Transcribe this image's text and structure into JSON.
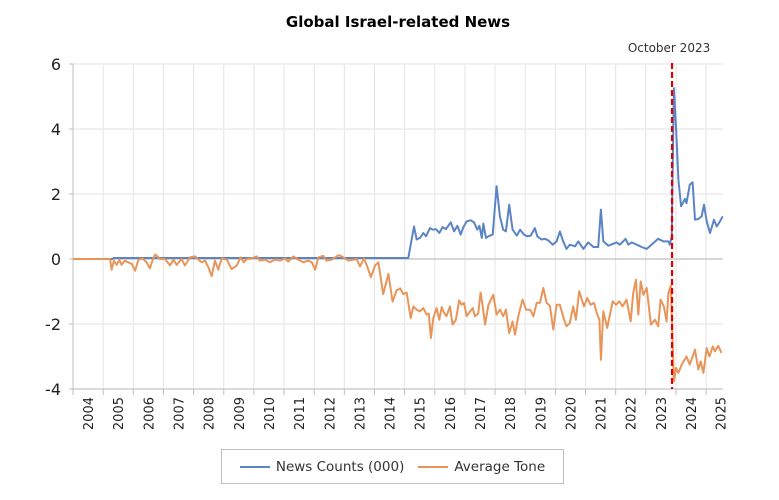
{
  "chart_data": {
    "type": "line",
    "title": "Global Israel-related News",
    "xlabel": "",
    "ylabel": "",
    "xlim": [
      2004,
      2025.55
    ],
    "ylim": [
      -4,
      6
    ],
    "yticks": [
      6,
      4,
      2,
      0,
      -2,
      -4
    ],
    "xtick_labels": [
      "2004",
      "2005",
      "2006",
      "2007",
      "2008",
      "2009",
      "2010",
      "2011",
      "2012",
      "2013",
      "2014",
      "2015",
      "2016",
      "2017",
      "2018",
      "2019",
      "2020",
      "2021",
      "2022",
      "2023",
      "2024",
      "2025"
    ],
    "grid": true,
    "legend": "bottom",
    "annotation": {
      "label": "October 2023",
      "x": 2023.87,
      "color": "#e00000",
      "style": "dashed"
    },
    "series": [
      {
        "name": "News Counts (000)",
        "color": "#5b84c4",
        "points": [
          [
            2004,
            0
          ],
          [
            2005.3,
            0
          ],
          [
            2005.35,
            0.03
          ],
          [
            2015.12,
            0.03
          ],
          [
            2015.31,
            1.0
          ],
          [
            2015.4,
            0.6
          ],
          [
            2015.51,
            0.65
          ],
          [
            2015.62,
            0.8
          ],
          [
            2015.71,
            0.7
          ],
          [
            2015.84,
            0.95
          ],
          [
            2015.93,
            0.9
          ],
          [
            2016.04,
            0.92
          ],
          [
            2016.15,
            0.8
          ],
          [
            2016.26,
            0.98
          ],
          [
            2016.37,
            0.92
          ],
          [
            2016.53,
            1.13
          ],
          [
            2016.64,
            0.85
          ],
          [
            2016.75,
            1.02
          ],
          [
            2016.86,
            0.75
          ],
          [
            2016.95,
            0.98
          ],
          [
            2017.06,
            1.16
          ],
          [
            2017.19,
            1.19
          ],
          [
            2017.3,
            1.13
          ],
          [
            2017.41,
            0.9
          ],
          [
            2017.48,
            1.02
          ],
          [
            2017.56,
            0.65
          ],
          [
            2017.61,
            1.09
          ],
          [
            2017.7,
            0.65
          ],
          [
            2017.78,
            0.7
          ],
          [
            2017.92,
            0.75
          ],
          [
            2018.05,
            2.24
          ],
          [
            2018.16,
            1.31
          ],
          [
            2018.27,
            0.9
          ],
          [
            2018.36,
            0.85
          ],
          [
            2018.47,
            1.67
          ],
          [
            2018.58,
            0.9
          ],
          [
            2018.72,
            0.72
          ],
          [
            2018.83,
            0.9
          ],
          [
            2018.96,
            0.75
          ],
          [
            2019.07,
            0.7
          ],
          [
            2019.18,
            0.72
          ],
          [
            2019.32,
            0.95
          ],
          [
            2019.4,
            0.7
          ],
          [
            2019.54,
            0.6
          ],
          [
            2019.66,
            0.62
          ],
          [
            2019.77,
            0.57
          ],
          [
            2019.91,
            0.44
          ],
          [
            2020.04,
            0.54
          ],
          [
            2020.15,
            0.85
          ],
          [
            2020.26,
            0.54
          ],
          [
            2020.37,
            0.31
          ],
          [
            2020.48,
            0.44
          ],
          [
            2020.65,
            0.39
          ],
          [
            2020.76,
            0.54
          ],
          [
            2020.93,
            0.31
          ],
          [
            2021.09,
            0.51
          ],
          [
            2021.26,
            0.37
          ],
          [
            2021.42,
            0.37
          ],
          [
            2021.51,
            1.52
          ],
          [
            2021.59,
            0.54
          ],
          [
            2021.76,
            0.41
          ],
          [
            2022.03,
            0.51
          ],
          [
            2022.14,
            0.44
          ],
          [
            2022.33,
            0.62
          ],
          [
            2022.42,
            0.44
          ],
          [
            2022.53,
            0.51
          ],
          [
            2022.7,
            0.44
          ],
          [
            2022.86,
            0.37
          ],
          [
            2023.03,
            0.31
          ],
          [
            2023.19,
            0.44
          ],
          [
            2023.41,
            0.62
          ],
          [
            2023.58,
            0.54
          ],
          [
            2023.75,
            0.54
          ],
          [
            2023.8,
            0.44
          ],
          [
            2023.86,
            0.7
          ],
          [
            2023.93,
            5.26
          ],
          [
            2024.0,
            4.08
          ],
          [
            2024.08,
            2.44
          ],
          [
            2024.17,
            1.62
          ],
          [
            2024.3,
            1.85
          ],
          [
            2024.35,
            1.72
          ],
          [
            2024.46,
            2.29
          ],
          [
            2024.55,
            2.36
          ],
          [
            2024.63,
            1.21
          ],
          [
            2024.74,
            1.23
          ],
          [
            2024.85,
            1.31
          ],
          [
            2024.93,
            1.67
          ],
          [
            2025.02,
            1.16
          ],
          [
            2025.13,
            0.8
          ],
          [
            2025.26,
            1.21
          ],
          [
            2025.35,
            1.0
          ],
          [
            2025.46,
            1.16
          ],
          [
            2025.55,
            1.31
          ]
        ]
      },
      {
        "name": "Average Tone",
        "color": "#e8955a",
        "points": [
          [
            2004,
            0
          ],
          [
            2005.23,
            0
          ],
          [
            2005.28,
            -0.33
          ],
          [
            2005.36,
            -0.05
          ],
          [
            2005.45,
            -0.18
          ],
          [
            2005.54,
            -0.02
          ],
          [
            2005.61,
            -0.18
          ],
          [
            2005.72,
            -0.05
          ],
          [
            2005.83,
            -0.1
          ],
          [
            2005.95,
            -0.15
          ],
          [
            2006.06,
            -0.36
          ],
          [
            2006.17,
            -0.02
          ],
          [
            2006.31,
            0.02
          ],
          [
            2006.44,
            -0.1
          ],
          [
            2006.55,
            -0.29
          ],
          [
            2006.66,
            0.02
          ],
          [
            2006.73,
            0.14
          ],
          [
            2006.89,
            0
          ],
          [
            2007.05,
            0
          ],
          [
            2007.22,
            -0.2
          ],
          [
            2007.33,
            -0.02
          ],
          [
            2007.44,
            -0.18
          ],
          [
            2007.6,
            0
          ],
          [
            2007.71,
            -0.2
          ],
          [
            2007.88,
            0.05
          ],
          [
            2008.05,
            0.08
          ],
          [
            2008.16,
            -0.02
          ],
          [
            2008.27,
            -0.1
          ],
          [
            2008.38,
            -0.05
          ],
          [
            2008.49,
            -0.26
          ],
          [
            2008.6,
            -0.53
          ],
          [
            2008.71,
            -0.05
          ],
          [
            2008.82,
            -0.33
          ],
          [
            2008.93,
            0.02
          ],
          [
            2009.1,
            -0.02
          ],
          [
            2009.26,
            -0.31
          ],
          [
            2009.43,
            -0.2
          ],
          [
            2009.56,
            0.05
          ],
          [
            2009.67,
            -0.1
          ],
          [
            2009.76,
            0
          ],
          [
            2009.93,
            0.02
          ],
          [
            2010.09,
            0.08
          ],
          [
            2010.2,
            -0.05
          ],
          [
            2010.37,
            -0.02
          ],
          [
            2010.53,
            -0.1
          ],
          [
            2010.7,
            -0.02
          ],
          [
            2010.87,
            -0.05
          ],
          [
            2011.03,
            0.02
          ],
          [
            2011.14,
            -0.08
          ],
          [
            2011.31,
            0.08
          ],
          [
            2011.47,
            -0.02
          ],
          [
            2011.64,
            -0.1
          ],
          [
            2011.8,
            -0.05
          ],
          [
            2011.92,
            -0.1
          ],
          [
            2012.03,
            -0.33
          ],
          [
            2012.14,
            0.05
          ],
          [
            2012.3,
            0.1
          ],
          [
            2012.41,
            -0.05
          ],
          [
            2012.58,
            -0.02
          ],
          [
            2012.74,
            0.08
          ],
          [
            2012.83,
            0.12
          ],
          [
            2012.97,
            0.05
          ],
          [
            2013.13,
            -0.05
          ],
          [
            2013.3,
            -0.02
          ],
          [
            2013.41,
            0
          ],
          [
            2013.52,
            -0.23
          ],
          [
            2013.65,
            0.02
          ],
          [
            2013.77,
            -0.26
          ],
          [
            2013.88,
            -0.56
          ],
          [
            2014.02,
            -0.2
          ],
          [
            2014.13,
            -0.1
          ],
          [
            2014.29,
            -1.08
          ],
          [
            2014.46,
            -0.46
          ],
          [
            2014.6,
            -1.31
          ],
          [
            2014.73,
            -0.97
          ],
          [
            2014.85,
            -0.9
          ],
          [
            2014.96,
            -1.08
          ],
          [
            2015.07,
            -1.03
          ],
          [
            2015.2,
            -1.82
          ],
          [
            2015.29,
            -1.46
          ],
          [
            2015.4,
            -1.56
          ],
          [
            2015.51,
            -1.61
          ],
          [
            2015.62,
            -1.51
          ],
          [
            2015.73,
            -1.71
          ],
          [
            2015.8,
            -1.68
          ],
          [
            2015.87,
            -2.43
          ],
          [
            2015.95,
            -1.82
          ],
          [
            2016.06,
            -1.51
          ],
          [
            2016.15,
            -1.87
          ],
          [
            2016.23,
            -1.48
          ],
          [
            2016.31,
            -1.66
          ],
          [
            2016.39,
            -1.76
          ],
          [
            2016.5,
            -1.46
          ],
          [
            2016.59,
            -2.02
          ],
          [
            2016.7,
            -1.87
          ],
          [
            2016.81,
            -1.27
          ],
          [
            2016.89,
            -1.41
          ],
          [
            2016.97,
            -1.35
          ],
          [
            2017.06,
            -1.76
          ],
          [
            2017.17,
            -1.61
          ],
          [
            2017.26,
            -1.51
          ],
          [
            2017.33,
            -1.76
          ],
          [
            2017.44,
            -1.68
          ],
          [
            2017.52,
            -1.03
          ],
          [
            2017.59,
            -1.46
          ],
          [
            2017.67,
            -2.02
          ],
          [
            2017.78,
            -1.41
          ],
          [
            2017.94,
            -1.1
          ],
          [
            2018.05,
            -1.71
          ],
          [
            2018.16,
            -1.56
          ],
          [
            2018.27,
            -1.76
          ],
          [
            2018.36,
            -1.56
          ],
          [
            2018.47,
            -2.28
          ],
          [
            2018.58,
            -1.92
          ],
          [
            2018.66,
            -2.33
          ],
          [
            2018.77,
            -1.76
          ],
          [
            2018.91,
            -1.25
          ],
          [
            2019.03,
            -1.56
          ],
          [
            2019.16,
            -1.56
          ],
          [
            2019.27,
            -1.76
          ],
          [
            2019.38,
            -1.35
          ],
          [
            2019.49,
            -1.35
          ],
          [
            2019.6,
            -0.89
          ],
          [
            2019.71,
            -1.35
          ],
          [
            2019.82,
            -1.44
          ],
          [
            2019.93,
            -2.17
          ],
          [
            2020.04,
            -1.41
          ],
          [
            2020.15,
            -1.41
          ],
          [
            2020.29,
            -1.87
          ],
          [
            2020.37,
            -2.07
          ],
          [
            2020.48,
            -1.97
          ],
          [
            2020.59,
            -1.46
          ],
          [
            2020.68,
            -1.87
          ],
          [
            2020.79,
            -0.99
          ],
          [
            2020.95,
            -1.46
          ],
          [
            2021.06,
            -1.2
          ],
          [
            2021.17,
            -1.41
          ],
          [
            2021.28,
            -1.35
          ],
          [
            2021.37,
            -1.66
          ],
          [
            2021.46,
            -1.87
          ],
          [
            2021.51,
            -3.1
          ],
          [
            2021.59,
            -1.61
          ],
          [
            2021.72,
            -2.12
          ],
          [
            2021.9,
            -1.3
          ],
          [
            2022.01,
            -1.41
          ],
          [
            2022.12,
            -1.3
          ],
          [
            2022.23,
            -1.46
          ],
          [
            2022.36,
            -1.25
          ],
          [
            2022.5,
            -1.92
          ],
          [
            2022.58,
            -1.05
          ],
          [
            2022.67,
            -0.64
          ],
          [
            2022.75,
            -1.71
          ],
          [
            2022.83,
            -0.69
          ],
          [
            2022.92,
            -1.1
          ],
          [
            2023.03,
            -0.89
          ],
          [
            2023.17,
            -2.02
          ],
          [
            2023.3,
            -1.87
          ],
          [
            2023.41,
            -2.07
          ],
          [
            2023.49,
            -1.25
          ],
          [
            2023.6,
            -1.46
          ],
          [
            2023.69,
            -1.92
          ],
          [
            2023.75,
            -1.05
          ],
          [
            2023.83,
            -0.82
          ],
          [
            2023.93,
            -3.76
          ],
          [
            2024.0,
            -3.35
          ],
          [
            2024.08,
            -3.5
          ],
          [
            2024.19,
            -3.25
          ],
          [
            2024.35,
            -3.0
          ],
          [
            2024.46,
            -3.25
          ],
          [
            2024.63,
            -2.79
          ],
          [
            2024.74,
            -3.4
          ],
          [
            2024.82,
            -3.15
          ],
          [
            2024.91,
            -3.5
          ],
          [
            2025.02,
            -2.74
          ],
          [
            2025.11,
            -3.0
          ],
          [
            2025.22,
            -2.69
          ],
          [
            2025.29,
            -2.84
          ],
          [
            2025.4,
            -2.67
          ],
          [
            2025.51,
            -2.89
          ]
        ]
      }
    ]
  }
}
